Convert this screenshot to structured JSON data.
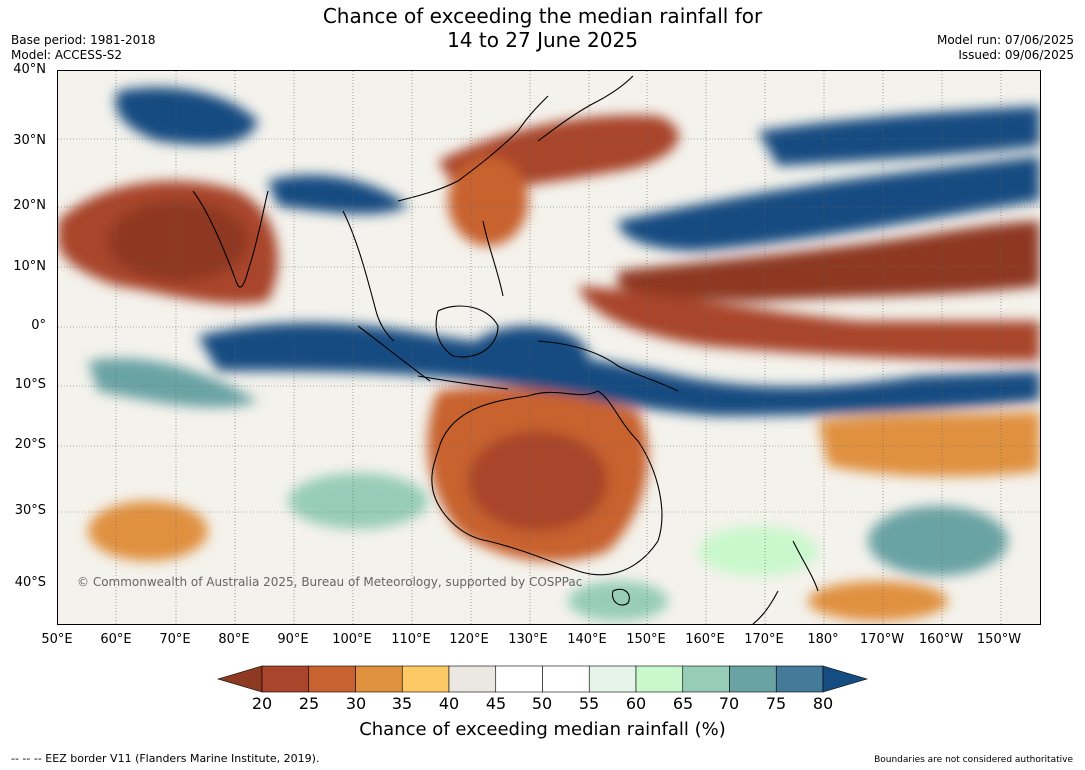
{
  "title": {
    "line1": "Chance of exceeding the median rainfall for",
    "line2": "14 to 27 June 2025"
  },
  "meta_left": {
    "base_period": "Base period: 1981-2018",
    "model": "Model: ACCESS-S2"
  },
  "meta_right": {
    "model_run": "Model run: 07/06/2025",
    "issued": "Issued: 09/06/2025"
  },
  "latitude_labels": [
    "40°N",
    "30°N",
    "20°N",
    "10°N",
    "0°",
    "10°S",
    "20°S",
    "30°S",
    "40°S"
  ],
  "longitude_labels": [
    "50°E",
    "60°E",
    "70°E",
    "80°E",
    "90°E",
    "100°E",
    "110°E",
    "120°E",
    "130°E",
    "140°E",
    "150°E",
    "160°E",
    "170°E",
    "180°",
    "170°W",
    "160°W",
    "150°W"
  ],
  "colorbar": {
    "colors": [
      "#8e3921",
      "#a9452a",
      "#c8622f",
      "#e0913f",
      "#fdc965",
      "#ebe8e2",
      "#ffffff",
      "#ffffff",
      "#e6f5ea",
      "#c9f8cc",
      "#97cdb8",
      "#6aa3a4",
      "#467a99",
      "#154c81"
    ],
    "ticks": [
      "20",
      "25",
      "30",
      "35",
      "40",
      "45",
      "50",
      "55",
      "60",
      "65",
      "70",
      "75",
      "80"
    ],
    "label": "Chance of exceeding median rainfall (%)"
  },
  "copyright": "© Commonwealth of Australia 2025, Bureau of Meteorology, supported by COSPPac",
  "footer_left": "--  --  -- EEZ border V11 (Flanders Marine Institute, 2019).",
  "footer_right": "Boundaries are not considered authoritative"
}
